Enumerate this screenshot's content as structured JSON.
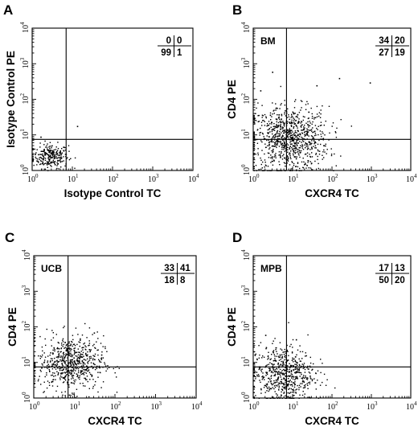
{
  "chart_data": [
    {
      "type": "scatter",
      "panel": "A",
      "inset_label": "",
      "xlabel": "Isotype Control TC",
      "ylabel": "Isotype Control PE",
      "xscale": "log",
      "yscale": "log",
      "xlim": [
        1,
        10000
      ],
      "ylim": [
        1,
        10000
      ],
      "x_ticks": [
        "10",
        "10",
        "10",
        "10",
        "10"
      ],
      "x_tick_exponents": [
        "0",
        "1",
        "2",
        "3",
        "4"
      ],
      "y_ticks": [
        "10",
        "10",
        "10",
        "10",
        "10"
      ],
      "y_tick_exponents": [
        "0",
        "1",
        "2",
        "3",
        "4"
      ],
      "gate": {
        "x": 7,
        "y": 7.5
      },
      "quadrant_percent": {
        "upper_left": "0",
        "upper_right": "0",
        "lower_left": "99",
        "lower_right": "1"
      },
      "population": {
        "center": [
          2.8,
          2.6
        ],
        "spread_decades": [
          0.22,
          0.17
        ],
        "n": 260,
        "outliers": [
          [
            13,
            18
          ],
          [
            1.6,
            9
          ]
        ]
      }
    },
    {
      "type": "scatter",
      "panel": "B",
      "inset_label": "BM",
      "xlabel": "CXCR4 TC",
      "ylabel": "CD4 PE",
      "xscale": "log",
      "yscale": "log",
      "xlim": [
        1,
        10000
      ],
      "ylim": [
        1,
        10000
      ],
      "x_ticks": [
        "10",
        "10",
        "10",
        "10",
        "10"
      ],
      "x_tick_exponents": [
        "0",
        "1",
        "2",
        "3",
        "4"
      ],
      "y_ticks": [
        "10",
        "10",
        "10",
        "10",
        "10"
      ],
      "y_tick_exponents": [
        "0",
        "1",
        "2",
        "3",
        "4"
      ],
      "gate": {
        "x": 7,
        "y": 7.5
      },
      "quadrant_percent": {
        "upper_left": "34",
        "upper_right": "20",
        "lower_left": "27",
        "lower_right": "19"
      },
      "population": {
        "center": [
          8,
          8
        ],
        "spread_decades": [
          0.5,
          0.45
        ],
        "n": 900,
        "outliers": [
          [
            3,
            600
          ],
          [
            150,
            400
          ],
          [
            900,
            300
          ],
          [
            40,
            250
          ],
          [
            1.5,
            180
          ]
        ]
      }
    },
    {
      "type": "scatter",
      "panel": "C",
      "inset_label": "UCB",
      "xlabel": "CXCR4 TC",
      "ylabel": "CD4 PE",
      "xscale": "log",
      "yscale": "log",
      "xlim": [
        1,
        10000
      ],
      "ylim": [
        1,
        10000
      ],
      "x_ticks": [
        "10",
        "10",
        "10",
        "10",
        "10"
      ],
      "x_tick_exponents": [
        "0",
        "1",
        "2",
        "3",
        "4"
      ],
      "y_ticks": [
        "10",
        "10",
        "10",
        "10",
        "10"
      ],
      "y_tick_exponents": [
        "0",
        "1",
        "2",
        "3",
        "4"
      ],
      "gate": {
        "x": 7,
        "y": 7.5
      },
      "quadrant_percent": {
        "upper_left": "33",
        "upper_right": "41",
        "lower_left": "18",
        "lower_right": "8"
      },
      "population": {
        "center": [
          8,
          10
        ],
        "spread_decades": [
          0.4,
          0.38
        ],
        "n": 650,
        "outliers": [
          [
            30,
            70
          ]
        ]
      }
    },
    {
      "type": "scatter",
      "panel": "D",
      "inset_label": "MPB",
      "xlabel": "CXCR4 TC",
      "ylabel": "CD4 PE",
      "xscale": "log",
      "yscale": "log",
      "xlim": [
        1,
        10000
      ],
      "ylim": [
        1,
        10000
      ],
      "x_ticks": [
        "10",
        "10",
        "10",
        "10",
        "10"
      ],
      "x_tick_exponents": [
        "0",
        "1",
        "2",
        "3",
        "4"
      ],
      "y_ticks": [
        "10",
        "10",
        "10",
        "10",
        "10"
      ],
      "y_tick_exponents": [
        "0",
        "1",
        "2",
        "3",
        "4"
      ],
      "gate": {
        "x": 7,
        "y": 7.5
      },
      "quadrant_percent": {
        "upper_left": "17",
        "upper_right": "13",
        "lower_left": "50",
        "lower_right": "20"
      },
      "population": {
        "center": [
          5.5,
          5
        ],
        "spread_decades": [
          0.4,
          0.4
        ],
        "n": 600,
        "outliers": [
          [
            2,
            60
          ],
          [
            12,
            45
          ]
        ]
      }
    }
  ]
}
